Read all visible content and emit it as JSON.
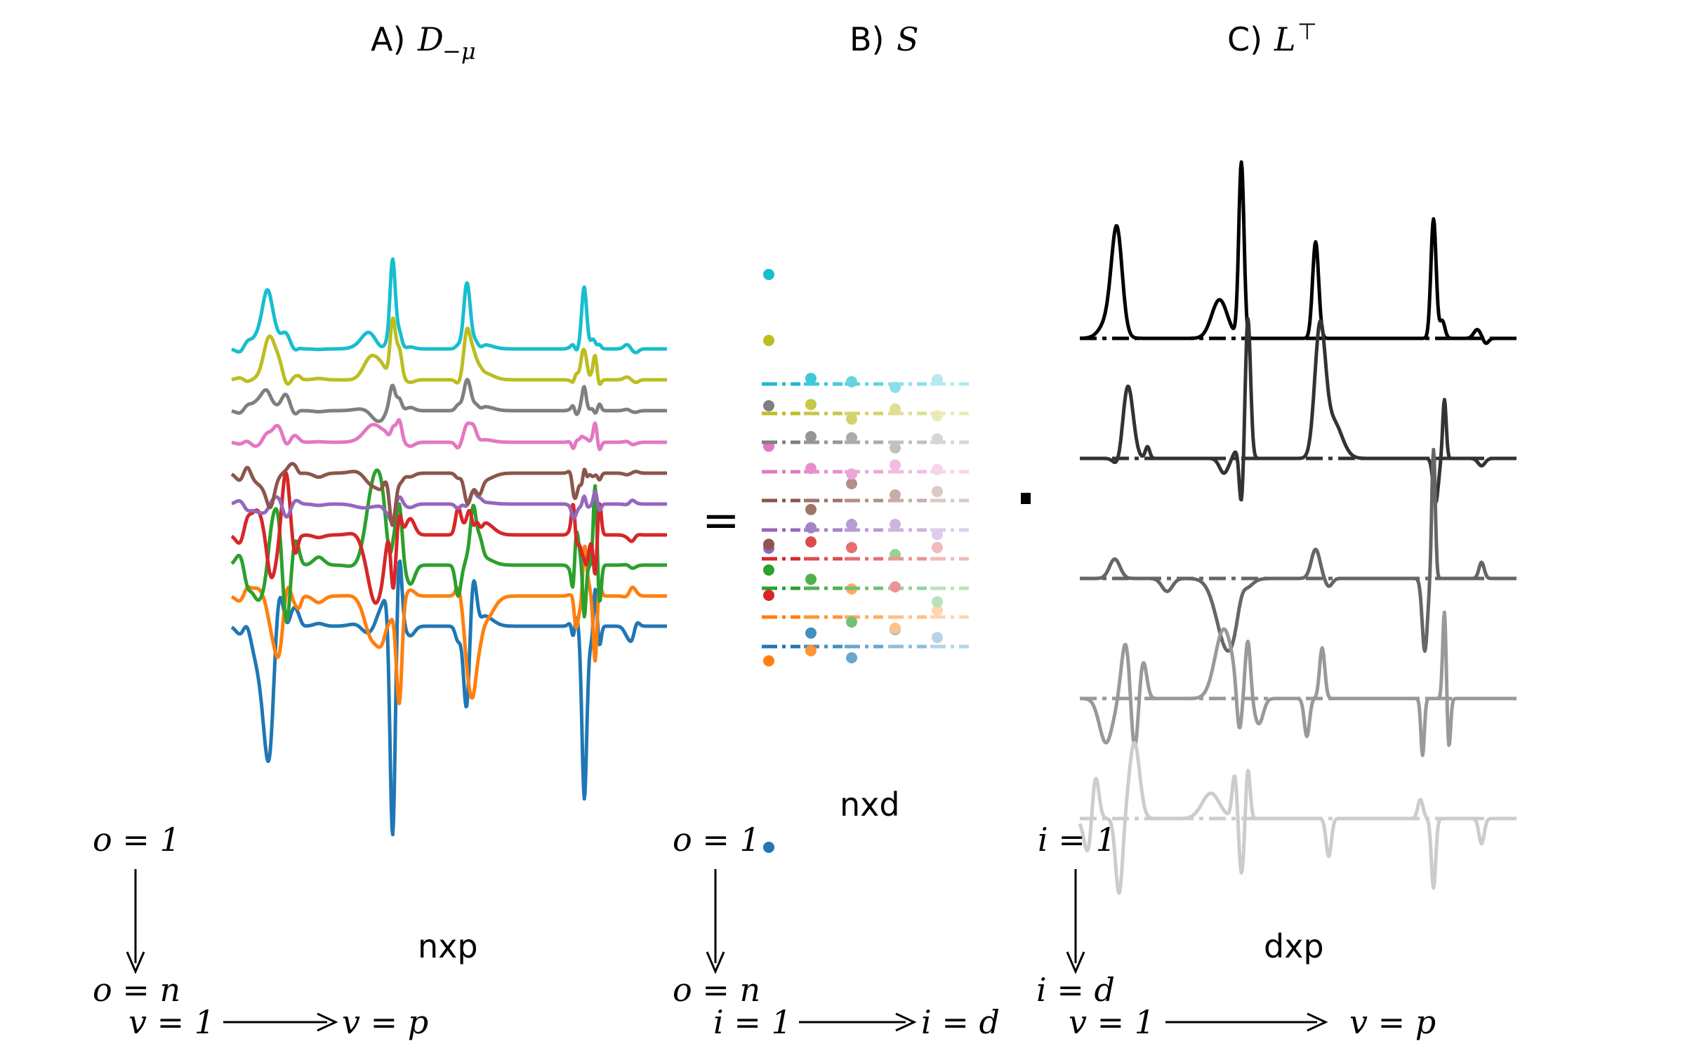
{
  "panels": {
    "a": {
      "letter": "A)",
      "symbol": "D",
      "subscript": "−μ",
      "dims": "nxp"
    },
    "b": {
      "letter": "B)",
      "symbol": "S",
      "dims": "nxd"
    },
    "c": {
      "letter": "C)",
      "symbol": "L",
      "superscript": "⊤",
      "dims": "dxp"
    }
  },
  "operators": {
    "equals": "=",
    "dot": "·"
  },
  "axes": {
    "a_rows": {
      "start": "o = 1",
      "end": "o = n"
    },
    "a_cols": {
      "start": "v = 1",
      "end": "v = p"
    },
    "b_rows": {
      "start": "o = 1",
      "end": "o = n"
    },
    "b_cols": {
      "start": "i = 1",
      "end": "i = d"
    },
    "c_rows": {
      "start": "i = 1",
      "end": "i = d"
    },
    "c_cols": {
      "start": "v = 1",
      "end": "v = p"
    }
  },
  "colors": {
    "series_a": [
      "#1f77b4",
      "#ff7f0e",
      "#2ca02c",
      "#d62728",
      "#9467bd",
      "#8c564b",
      "#e377c2",
      "#7f7f7f",
      "#bcbd22",
      "#17becf"
    ],
    "series_c": [
      "#000000",
      "#333333",
      "#666666",
      "#999999",
      "#cccccc"
    ]
  }
}
